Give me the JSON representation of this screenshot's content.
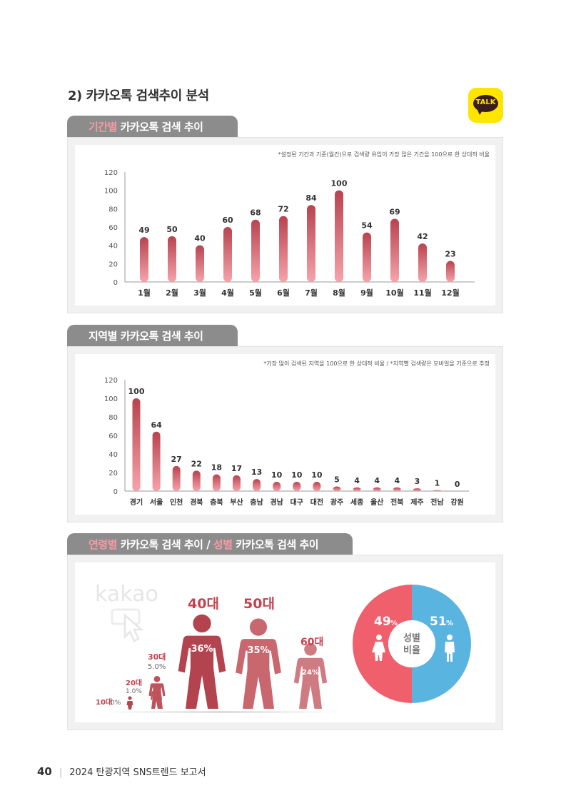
{
  "section_title": "2) 카카오톡 검색추이 분석",
  "logo_text": "TALK",
  "period": {
    "title_hl": "기간별",
    "title_rest": " 카카오톡 검색 추이",
    "note": "*설정된 기간과 기준(월간)으로 검색량 유입이 가장 많은 기간을 100으로 한 상대적 비율"
  },
  "region": {
    "title_hl": "",
    "title_rest": "지역별 카카오톡 검색 추이",
    "note": "*가장 많이 검색된 지역을 100으로 한 상대적 비율 / *지역별 검색량은 모바일을 기준으로 추정"
  },
  "agegender": {
    "title_hl1": "연령별",
    "title_mid": " 카카오톡 검색 추이 / ",
    "title_hl2": "성별",
    "title_end": " 카카오톡 검색 추이",
    "kakao_text": "kakao",
    "ages": [
      {
        "label": "10대",
        "pct": "0%"
      },
      {
        "label": "20대",
        "pct": "1.0%"
      },
      {
        "label": "30대",
        "pct": "5.0%"
      },
      {
        "label": "40대",
        "pct": "36%"
      },
      {
        "label": "50대",
        "pct": "35%"
      },
      {
        "label": "60대",
        "pct": "24%"
      }
    ],
    "gender": {
      "female_pct": "49",
      "male_pct": "51",
      "pct_sign": "%",
      "center_line1": "성별",
      "center_line2": "비율",
      "female_color": "#f0606c",
      "male_color": "#5ab4e0"
    }
  },
  "chart_data": [
    {
      "type": "bar",
      "categories": [
        "1월",
        "2월",
        "3월",
        "4월",
        "5월",
        "6월",
        "7월",
        "8월",
        "9월",
        "10월",
        "11월",
        "12월"
      ],
      "values": [
        49,
        50,
        40,
        60,
        68,
        72,
        84,
        100,
        54,
        69,
        42,
        23
      ],
      "ylim": [
        0,
        120
      ],
      "yticks": [
        0,
        20,
        40,
        60,
        80,
        100,
        120
      ],
      "color_top": "#b8434f",
      "color_bottom": "#f6a3aa"
    },
    {
      "type": "bar",
      "categories": [
        "경기",
        "서울",
        "인천",
        "경북",
        "충북",
        "부산",
        "충남",
        "경남",
        "대구",
        "대전",
        "광주",
        "세종",
        "울산",
        "전북",
        "제주",
        "전남",
        "강원"
      ],
      "values": [
        100,
        64,
        27,
        22,
        18,
        17,
        13,
        10,
        10,
        10,
        5,
        4,
        4,
        4,
        3,
        1,
        0
      ],
      "ylim": [
        0,
        120
      ],
      "yticks": [
        0,
        20,
        40,
        60,
        80,
        100,
        120
      ],
      "color_top": "#b8434f",
      "color_bottom": "#f6a3aa"
    }
  ],
  "footer": {
    "page_number": "40",
    "report_title": "2024 탄광지역 SNS트렌드 보고서"
  }
}
